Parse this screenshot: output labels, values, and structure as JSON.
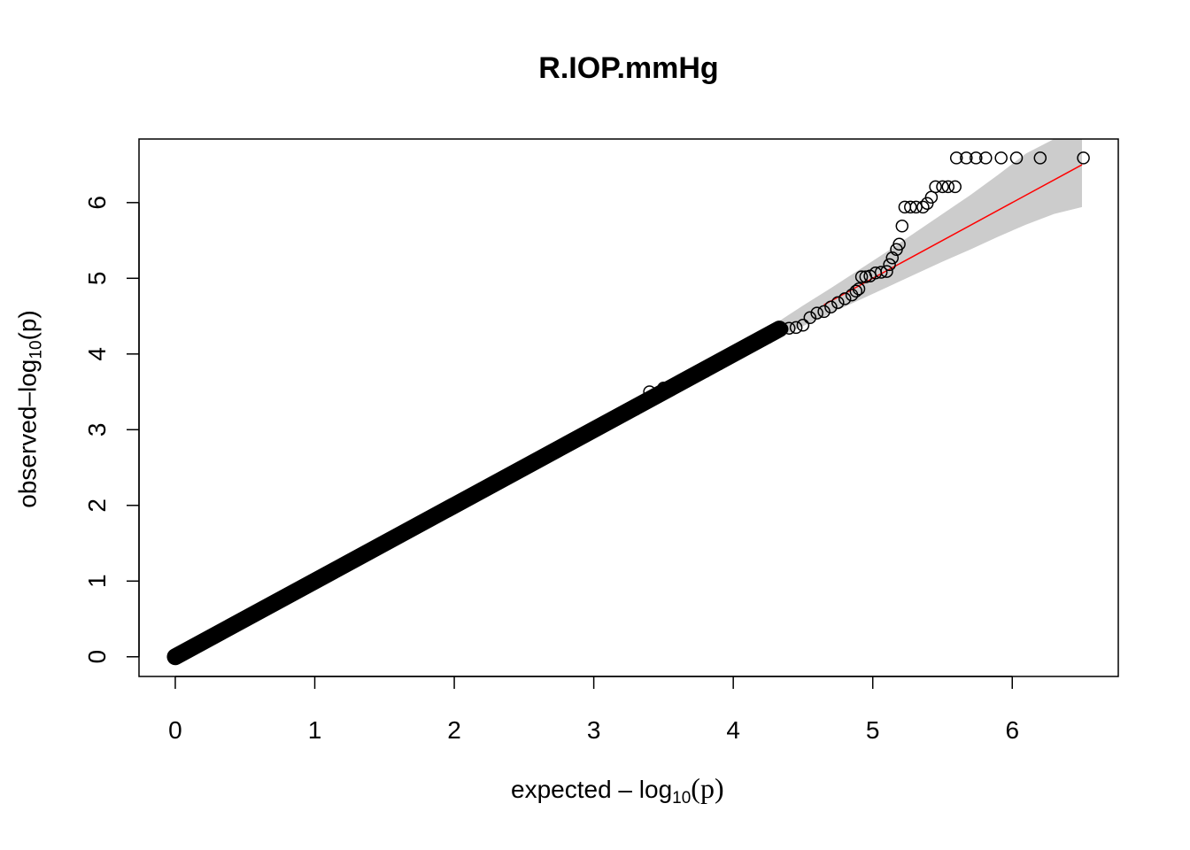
{
  "chart_data": {
    "type": "scatter",
    "title": "R.IOP.mmHg",
    "xlabel": {
      "prefix": "expected",
      "minus": "–",
      "log": "log",
      "base": "10",
      "paren": "(p)"
    },
    "ylabel": {
      "prefix": "observed",
      "minus": "–",
      "log": "log",
      "base": "10",
      "paren": "(p)"
    },
    "xlim": [
      -0.26,
      6.76
    ],
    "ylim": [
      -0.26,
      6.84
    ],
    "x_ticks": [
      "0",
      "1",
      "2",
      "3",
      "4",
      "5",
      "6"
    ],
    "y_ticks": [
      "0",
      "1",
      "2",
      "3",
      "4",
      "5",
      "6"
    ],
    "grid": false,
    "legend": "none",
    "reference_line": {
      "x": [
        4.65,
        6.5
      ],
      "y": [
        4.65,
        6.5
      ],
      "color": "#ff0000"
    },
    "confidence_band": {
      "color": "#cccccc",
      "x": [
        4.3,
        4.5,
        4.7,
        4.9,
        5.1,
        5.3,
        5.5,
        5.7,
        5.9,
        6.1,
        6.3,
        6.5
      ],
      "upper": [
        4.4,
        4.64,
        4.87,
        5.11,
        5.35,
        5.6,
        5.85,
        6.1,
        6.37,
        6.65,
        6.84,
        6.84
      ],
      "lower": [
        4.2,
        4.37,
        4.54,
        4.71,
        4.88,
        5.05,
        5.22,
        5.38,
        5.55,
        5.71,
        5.85,
        5.94
      ]
    },
    "dense_band": {
      "x_from": 0.0,
      "x_to": 4.33,
      "note": "continuous run of points along y = x"
    },
    "points": [
      {
        "x": 3.3,
        "y": 3.27
      },
      {
        "x": 3.4,
        "y": 3.5
      },
      {
        "x": 3.5,
        "y": 3.55
      },
      {
        "x": 3.6,
        "y": 3.62
      },
      {
        "x": 3.7,
        "y": 3.7
      },
      {
        "x": 3.8,
        "y": 3.77
      },
      {
        "x": 3.9,
        "y": 3.87
      },
      {
        "x": 4.0,
        "y": 4.0
      },
      {
        "x": 4.1,
        "y": 4.12
      },
      {
        "x": 4.2,
        "y": 4.2
      },
      {
        "x": 4.25,
        "y": 4.22
      },
      {
        "x": 4.3,
        "y": 4.3
      },
      {
        "x": 4.35,
        "y": 4.33
      },
      {
        "x": 4.4,
        "y": 4.34
      },
      {
        "x": 4.45,
        "y": 4.35
      },
      {
        "x": 4.5,
        "y": 4.38
      },
      {
        "x": 4.55,
        "y": 4.48
      },
      {
        "x": 4.6,
        "y": 4.54
      },
      {
        "x": 4.65,
        "y": 4.56
      },
      {
        "x": 4.7,
        "y": 4.62
      },
      {
        "x": 4.75,
        "y": 4.68
      },
      {
        "x": 4.8,
        "y": 4.73
      },
      {
        "x": 4.85,
        "y": 4.78
      },
      {
        "x": 4.88,
        "y": 4.83
      },
      {
        "x": 4.9,
        "y": 4.86
      },
      {
        "x": 4.92,
        "y": 5.02
      },
      {
        "x": 4.95,
        "y": 5.02
      },
      {
        "x": 4.98,
        "y": 5.03
      },
      {
        "x": 5.02,
        "y": 5.07
      },
      {
        "x": 5.06,
        "y": 5.08
      },
      {
        "x": 5.1,
        "y": 5.09
      },
      {
        "x": 5.12,
        "y": 5.18
      },
      {
        "x": 5.14,
        "y": 5.27
      },
      {
        "x": 5.17,
        "y": 5.38
      },
      {
        "x": 5.19,
        "y": 5.45
      },
      {
        "x": 5.21,
        "y": 5.69
      },
      {
        "x": 5.23,
        "y": 5.94
      },
      {
        "x": 5.27,
        "y": 5.94
      },
      {
        "x": 5.31,
        "y": 5.94
      },
      {
        "x": 5.36,
        "y": 5.94
      },
      {
        "x": 5.39,
        "y": 5.99
      },
      {
        "x": 5.42,
        "y": 6.07
      },
      {
        "x": 5.45,
        "y": 6.21
      },
      {
        "x": 5.5,
        "y": 6.21
      },
      {
        "x": 5.54,
        "y": 6.21
      },
      {
        "x": 5.59,
        "y": 6.21
      },
      {
        "x": 5.6,
        "y": 6.59
      },
      {
        "x": 5.67,
        "y": 6.59
      },
      {
        "x": 5.74,
        "y": 6.59
      },
      {
        "x": 5.81,
        "y": 6.59
      },
      {
        "x": 5.92,
        "y": 6.59
      },
      {
        "x": 6.03,
        "y": 6.59
      },
      {
        "x": 6.2,
        "y": 6.59
      },
      {
        "x": 6.51,
        "y": 6.59
      }
    ]
  }
}
